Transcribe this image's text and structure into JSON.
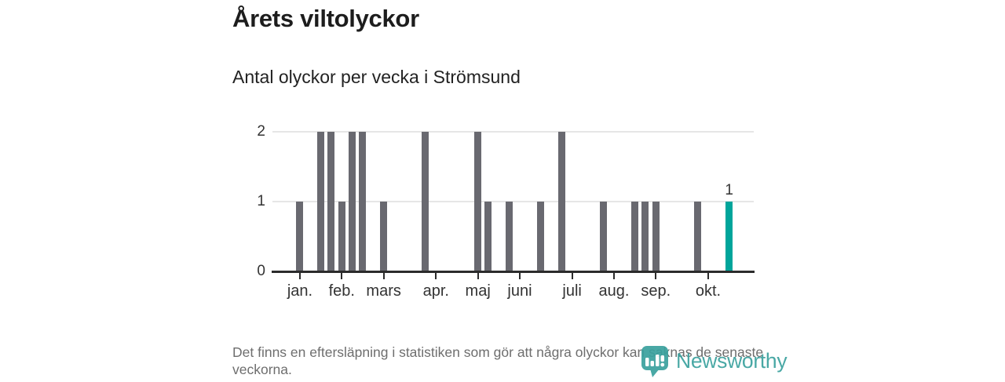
{
  "colors": {
    "bar": "#696970",
    "highlight": "#00a59b",
    "axis": "#2b2b2b",
    "gridline": "#e6e6e6",
    "text": "#1d1d1d",
    "muted_text": "#6e6e6e",
    "brand": "#3aa19e"
  },
  "branding": {
    "name": "Newsworthy",
    "logo_icon": "newsworthy-speech-bubble-barchart-icon"
  },
  "chart_data": {
    "type": "bar",
    "title": "Årets viltolyckor",
    "subtitle": "Antal olyckor per vecka i Strömsund",
    "note": "Det finns en eftersläpning i statistiken som gör att några olyckor kan saknas de senaste veckorna.",
    "x_unit": "vecka",
    "num_week_slots": 45,
    "values": [
      0,
      0,
      1,
      0,
      2,
      2,
      1,
      2,
      2,
      0,
      1,
      0,
      0,
      0,
      2,
      0,
      0,
      0,
      0,
      2,
      1,
      0,
      1,
      0,
      0,
      1,
      0,
      2,
      0,
      0,
      0,
      1,
      0,
      0,
      1,
      1,
      1,
      0,
      0,
      0,
      1,
      0,
      0,
      1,
      0
    ],
    "highlight_index": 43,
    "highlight_label": "1",
    "month_ticks": [
      {
        "label": "jan.",
        "week": 2
      },
      {
        "label": "feb.",
        "week": 6
      },
      {
        "label": "mars",
        "week": 10
      },
      {
        "label": "apr.",
        "week": 15
      },
      {
        "label": "maj",
        "week": 19
      },
      {
        "label": "juni",
        "week": 23
      },
      {
        "label": "juli",
        "week": 28
      },
      {
        "label": "aug.",
        "week": 32
      },
      {
        "label": "sep.",
        "week": 36
      },
      {
        "label": "okt.",
        "week": 41
      }
    ],
    "y_ticks": [
      {
        "value": 0,
        "label": "0"
      },
      {
        "value": 1,
        "label": "1"
      },
      {
        "value": 2,
        "label": "2"
      }
    ],
    "ylim": [
      0,
      2
    ],
    "grid": true,
    "legend": false
  }
}
